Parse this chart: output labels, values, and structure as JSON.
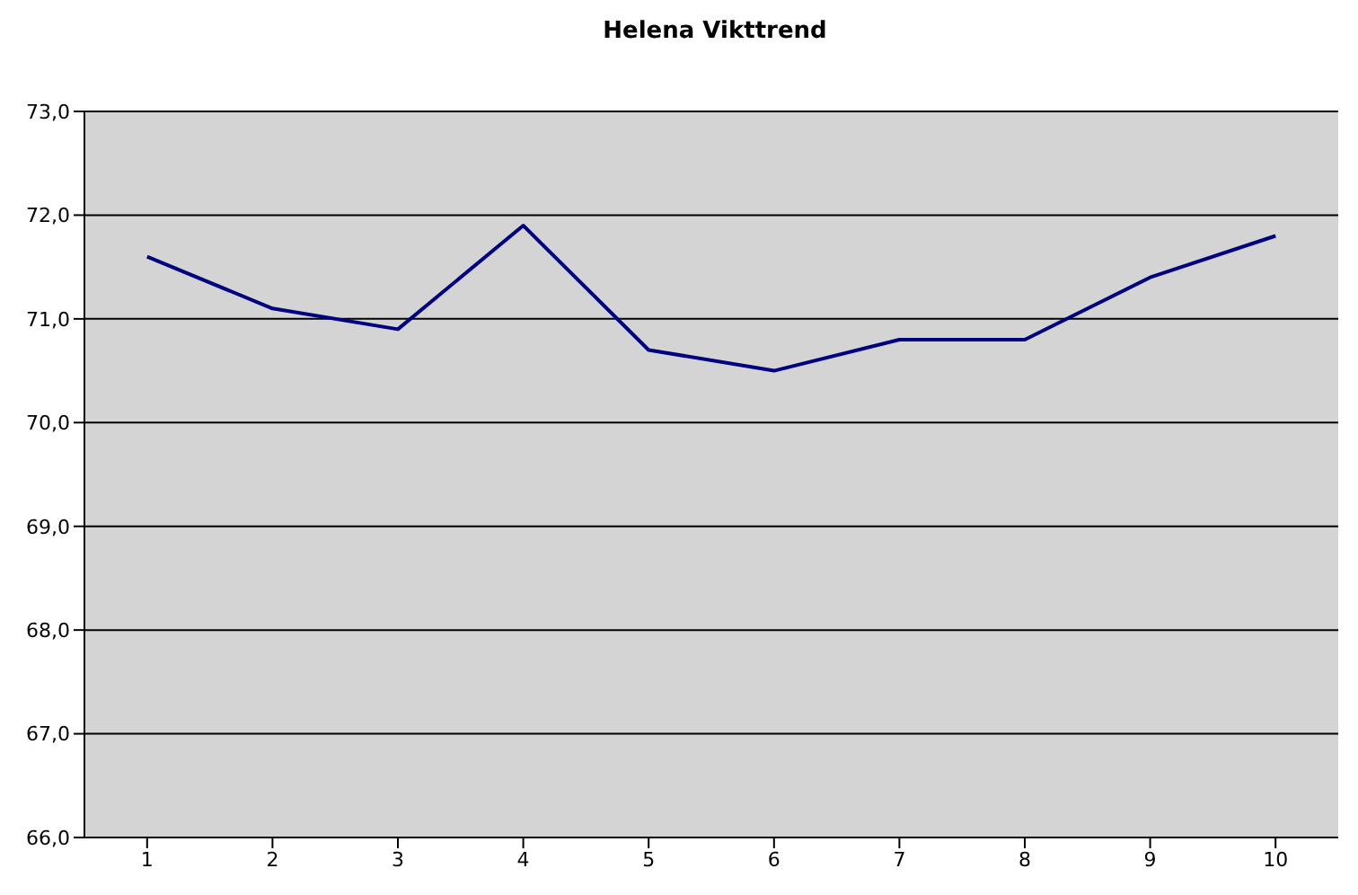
{
  "chart_data": {
    "type": "line",
    "title": "Helena Vikttrend",
    "categories": [
      "1",
      "2",
      "3",
      "4",
      "5",
      "6",
      "7",
      "8",
      "9",
      "10"
    ],
    "series": [
      {
        "color": "#000080",
        "values": [
          71.6,
          71.1,
          70.9,
          71.9,
          70.7,
          70.5,
          70.8,
          70.8,
          71.4,
          71.8
        ]
      }
    ],
    "ylim": [
      66,
      73
    ],
    "yticks": [
      {
        "value": 66,
        "label": "66,0"
      },
      {
        "value": 67,
        "label": "67,0"
      },
      {
        "value": 68,
        "label": "68,0"
      },
      {
        "value": 69,
        "label": "69,0"
      },
      {
        "value": 70,
        "label": "70,0"
      },
      {
        "value": 71,
        "label": "71,0"
      },
      {
        "value": 72,
        "label": "72,0"
      },
      {
        "value": 73,
        "label": "73,0"
      }
    ],
    "grid": "y",
    "marker": "none",
    "line_style": "solid",
    "legend": false
  }
}
